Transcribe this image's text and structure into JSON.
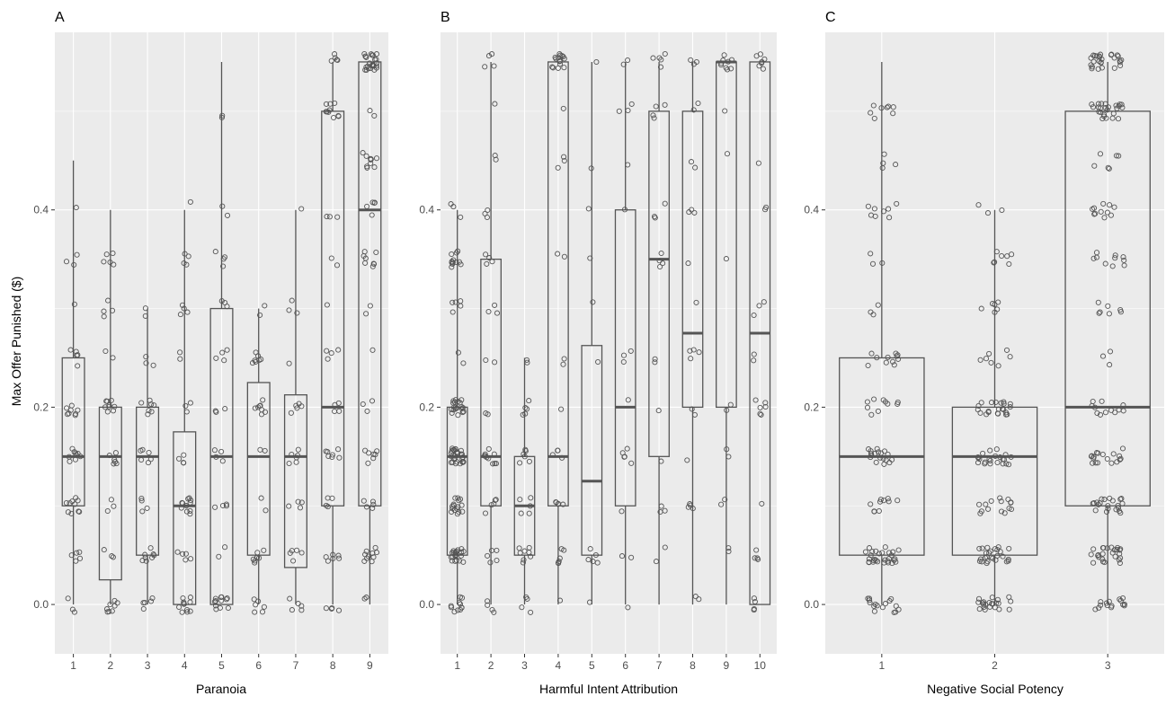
{
  "ylabel": "Max Offer Punished ($)",
  "chart_data": [
    {
      "type": "box",
      "title": "A",
      "xlabel": "Paranoia",
      "ylim": [
        -0.05,
        0.58
      ],
      "yticks": [
        0.0,
        0.2,
        0.4
      ],
      "categories": [
        "1",
        "2",
        "3",
        "4",
        "5",
        "6",
        "7",
        "8",
        "9"
      ],
      "boxes": [
        {
          "category": "1",
          "lower": 0.0,
          "q1": 0.1,
          "median": 0.15,
          "q3": 0.25,
          "upper": 0.45,
          "n": 45
        },
        {
          "category": "2",
          "lower": 0.0,
          "q1": 0.025,
          "median": 0.15,
          "q3": 0.2,
          "upper": 0.4,
          "n": 40
        },
        {
          "category": "3",
          "lower": 0.0,
          "q1": 0.05,
          "median": 0.15,
          "q3": 0.2,
          "upper": 0.3,
          "n": 35
        },
        {
          "category": "4",
          "lower": 0.0,
          "q1": 0.0,
          "median": 0.1,
          "q3": 0.175,
          "upper": 0.4,
          "n": 45
        },
        {
          "category": "5",
          "lower": 0.0,
          "q1": 0.0,
          "median": 0.15,
          "q3": 0.3,
          "upper": 0.55,
          "n": 40
        },
        {
          "category": "6",
          "lower": 0.0,
          "q1": 0.05,
          "median": 0.15,
          "q3": 0.225,
          "upper": 0.3,
          "n": 35
        },
        {
          "category": "7",
          "lower": 0.0,
          "q1": 0.0375,
          "median": 0.15,
          "q3": 0.2125,
          "upper": 0.4,
          "n": 30
        },
        {
          "category": "8",
          "lower": 0.0,
          "q1": 0.1,
          "median": 0.2,
          "q3": 0.5,
          "upper": 0.55,
          "n": 50
        },
        {
          "category": "9",
          "lower": 0.0,
          "q1": 0.1,
          "median": 0.4,
          "q3": 0.55,
          "upper": 0.55,
          "n": 80
        }
      ]
    },
    {
      "type": "box",
      "title": "B",
      "xlabel": "Harmful Intent Attribution",
      "ylim": [
        -0.05,
        0.58
      ],
      "yticks": [
        0.0,
        0.2,
        0.4
      ],
      "categories": [
        "1",
        "2",
        "3",
        "4",
        "5",
        "6",
        "7",
        "8",
        "9",
        "10"
      ],
      "boxes": [
        {
          "category": "1",
          "lower": 0.0,
          "q1": 0.05,
          "median": 0.15,
          "q3": 0.2,
          "upper": 0.4,
          "n": 120
        },
        {
          "category": "2",
          "lower": 0.0,
          "q1": 0.1,
          "median": 0.15,
          "q3": 0.35,
          "upper": 0.55,
          "n": 45
        },
        {
          "category": "3",
          "lower": 0.0,
          "q1": 0.05,
          "median": 0.1,
          "q3": 0.15,
          "upper": 0.25,
          "n": 30
        },
        {
          "category": "4",
          "lower": 0.0,
          "q1": 0.1,
          "median": 0.15,
          "q3": 0.55,
          "upper": 0.55,
          "n": 40
        },
        {
          "category": "5",
          "lower": 0.0,
          "q1": 0.05,
          "median": 0.125,
          "q3": 0.2625,
          "upper": 0.55,
          "n": 12
        },
        {
          "category": "6",
          "lower": 0.0,
          "q1": 0.1,
          "median": 0.2,
          "q3": 0.4,
          "upper": 0.55,
          "n": 20
        },
        {
          "category": "7",
          "lower": 0.0,
          "q1": 0.15,
          "median": 0.35,
          "q3": 0.5,
          "upper": 0.55,
          "n": 25
        },
        {
          "category": "8",
          "lower": 0.0,
          "q1": 0.2,
          "median": 0.275,
          "q3": 0.5,
          "upper": 0.55,
          "n": 25
        },
        {
          "category": "9",
          "lower": 0.0,
          "q1": 0.2,
          "median": 0.55,
          "q3": 0.55,
          "upper": 0.55,
          "n": 20
        },
        {
          "category": "10",
          "lower": 0.0,
          "q1": 0.0,
          "median": 0.275,
          "q3": 0.55,
          "upper": 0.55,
          "n": 30
        }
      ]
    },
    {
      "type": "box",
      "title": "C",
      "xlabel": "Negative Social Potency",
      "ylim": [
        -0.05,
        0.58
      ],
      "yticks": [
        0.0,
        0.2,
        0.4
      ],
      "categories": [
        "1",
        "2",
        "3"
      ],
      "boxes": [
        {
          "category": "1",
          "lower": 0.0,
          "q1": 0.05,
          "median": 0.15,
          "q3": 0.25,
          "upper": 0.55,
          "n": 120
        },
        {
          "category": "2",
          "lower": 0.0,
          "q1": 0.05,
          "median": 0.15,
          "q3": 0.2,
          "upper": 0.4,
          "n": 130
        },
        {
          "category": "3",
          "lower": 0.0,
          "q1": 0.1,
          "median": 0.2,
          "q3": 0.5,
          "upper": 0.55,
          "n": 180
        }
      ]
    }
  ]
}
